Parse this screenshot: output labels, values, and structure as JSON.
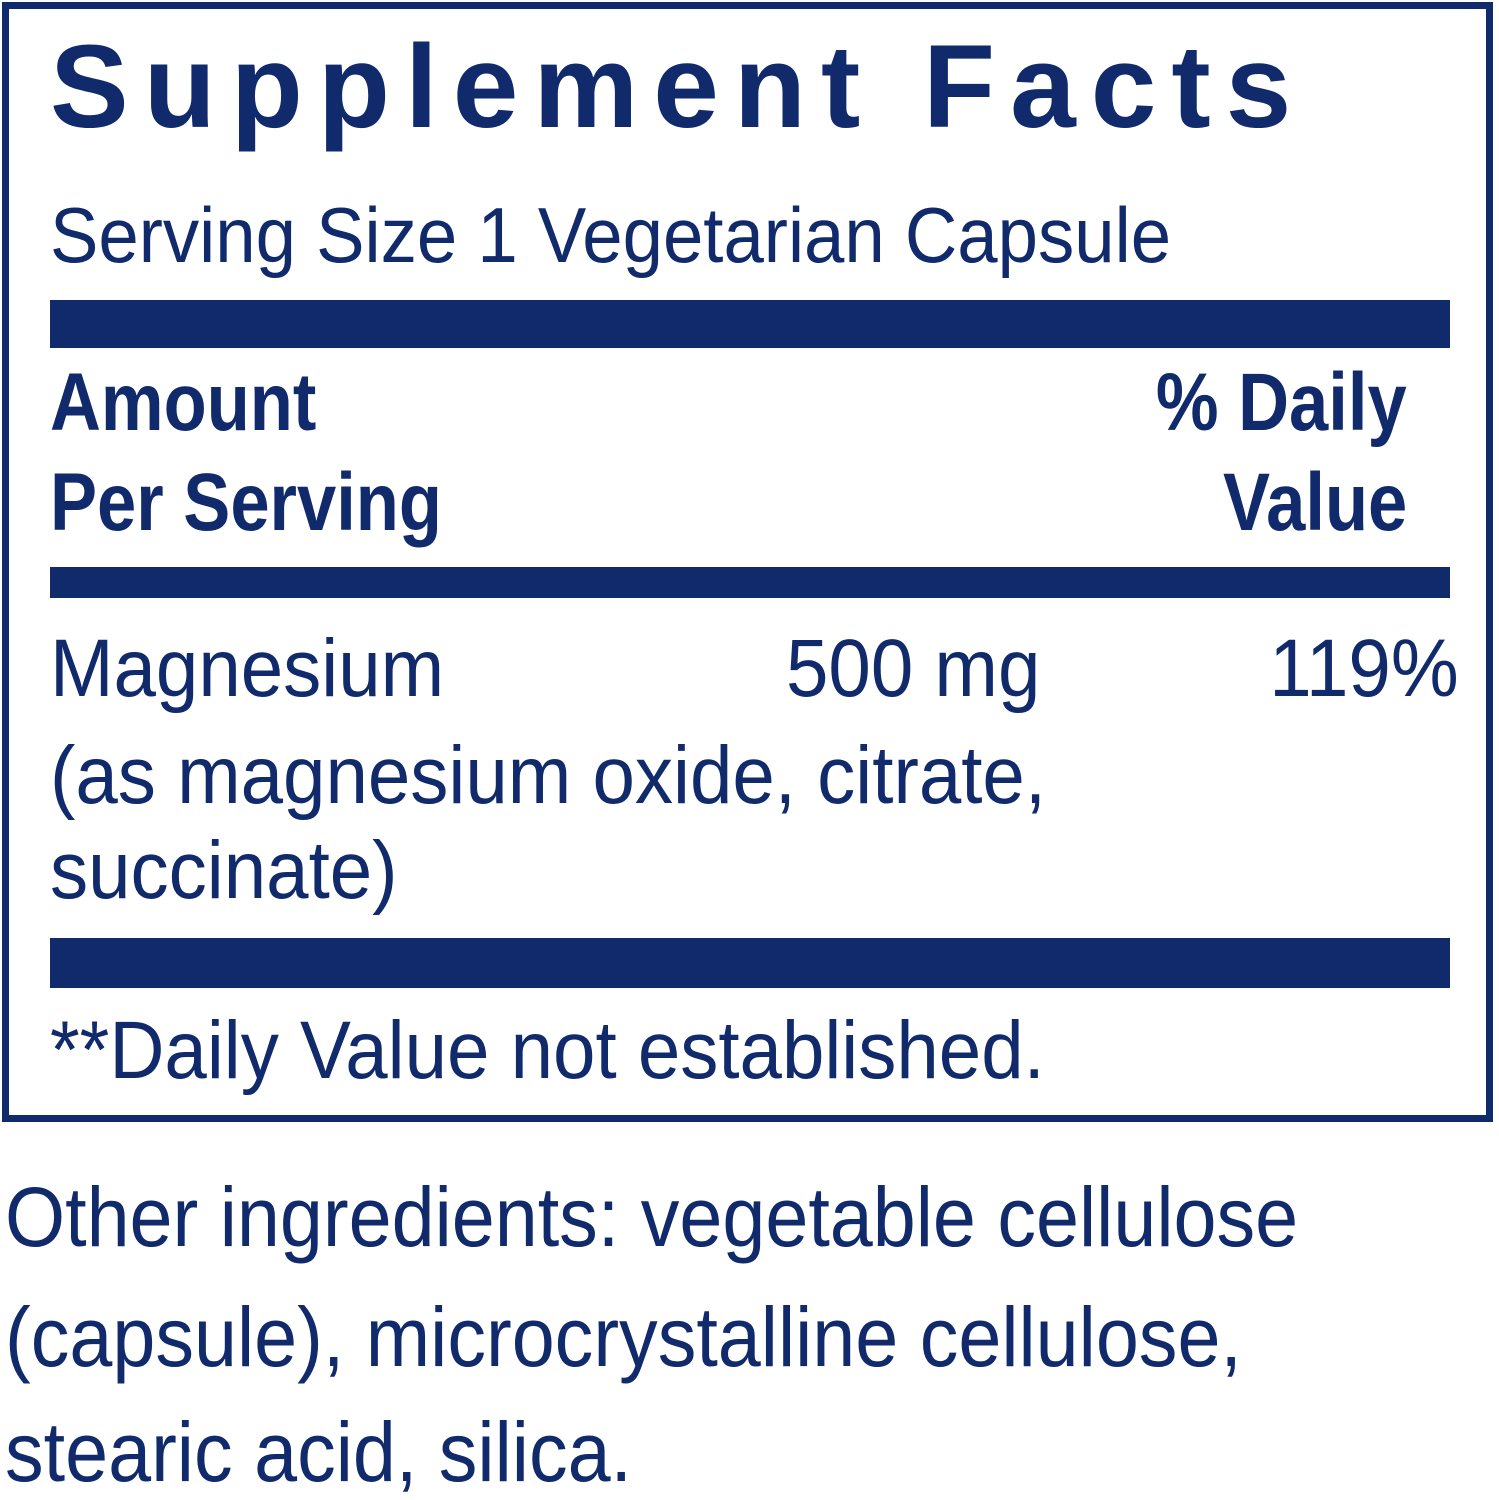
{
  "title": "Supplement Facts",
  "serving_size": "Serving Size 1 Vegetarian Capsule",
  "header": {
    "amount_line1": "Amount",
    "amount_line2": "Per Serving",
    "dv_line1": "% Daily",
    "dv_line2": "Value"
  },
  "nutrients": [
    {
      "name": "Magnesium",
      "detail_line1": "(as magnesium oxide, citrate,",
      "detail_line2": "succinate)",
      "amount": "500 mg",
      "daily_value": "119%"
    }
  ],
  "footnote": "**Daily Value not established.",
  "other_ingredients": {
    "line1": "Other ingredients: vegetable cellulose",
    "line2": "(capsule), microcrystalline cellulose,",
    "line3": "stearic acid, silica."
  },
  "colors": {
    "ink": "#102a6b",
    "background": "#ffffff"
  }
}
